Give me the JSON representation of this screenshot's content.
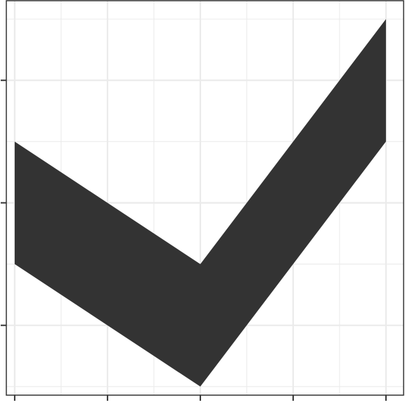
{
  "chart_data": {
    "type": "area",
    "title": "",
    "xlabel": "",
    "ylabel": "",
    "x": [
      1,
      2,
      3,
      4,
      5
    ],
    "ymin": [
      1,
      0.5,
      0,
      1,
      2
    ],
    "ymax": [
      2,
      1.5,
      1,
      2,
      3
    ],
    "xlim": [
      0.91,
      5.19
    ],
    "ylim": [
      -0.07,
      3.15
    ],
    "x_breaks": [
      1,
      2,
      3,
      4,
      5
    ],
    "x_minor_breaks": [
      1.5,
      2.5,
      3.5,
      4.5
    ],
    "y_breaks": [
      0.5,
      1.5,
      2.5
    ],
    "y_minor_breaks": [
      0,
      1,
      2,
      3
    ],
    "grid": true,
    "fill_color": "#333333",
    "grid_color": "#ebebeb",
    "panel_border_color": "#333333"
  }
}
